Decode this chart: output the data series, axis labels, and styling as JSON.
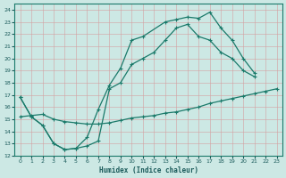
{
  "xlabel": "Humidex (Indice chaleur)",
  "bg_color": "#cce8e4",
  "grid_color": "#e8b8b8",
  "line_color": "#1a7a6a",
  "xlim": [
    -0.5,
    23.5
  ],
  "ylim": [
    12,
    24.5
  ],
  "line1_x": [
    0,
    1,
    2,
    3,
    4,
    5,
    6,
    7,
    8,
    9,
    10,
    11,
    13,
    14,
    15,
    16,
    17,
    18,
    19,
    20,
    21
  ],
  "line1_y": [
    16.8,
    15.2,
    14.5,
    13.0,
    12.5,
    12.6,
    13.5,
    15.8,
    17.8,
    19.2,
    21.5,
    21.8,
    23.0,
    23.2,
    23.4,
    23.3,
    23.8,
    22.5,
    21.5,
    20.0,
    18.8
  ],
  "line2_x": [
    0,
    1,
    2,
    3,
    4,
    5,
    6,
    7,
    8,
    9,
    10,
    11,
    12,
    13,
    14,
    15,
    16,
    17,
    18,
    19,
    20,
    21
  ],
  "line2_y": [
    16.8,
    15.2,
    14.5,
    13.0,
    12.5,
    12.6,
    12.8,
    13.2,
    17.5,
    18.0,
    19.5,
    20.0,
    20.5,
    21.5,
    22.5,
    22.8,
    21.8,
    21.5,
    20.5,
    20.0,
    19.0,
    18.5
  ],
  "line3_x": [
    0,
    1,
    2,
    3,
    4,
    5,
    6,
    7,
    8,
    9,
    10,
    11,
    12,
    13,
    14,
    15,
    16,
    17,
    18,
    19,
    20,
    21,
    22,
    23
  ],
  "line3_y": [
    15.2,
    15.3,
    15.4,
    15.0,
    14.8,
    14.7,
    14.6,
    14.6,
    14.7,
    14.9,
    15.1,
    15.2,
    15.3,
    15.5,
    15.6,
    15.8,
    16.0,
    16.3,
    16.5,
    16.7,
    16.9,
    17.1,
    17.3,
    17.5
  ]
}
